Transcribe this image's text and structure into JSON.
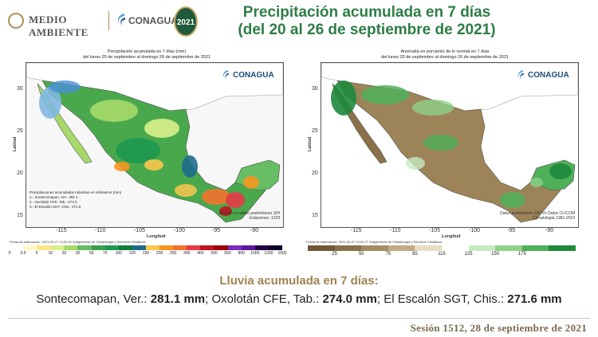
{
  "header": {
    "gov_logo_text": "MEDIO AMBIENTE",
    "agency_logo_text": "CONAGUA",
    "badge_text": "2021",
    "title_line1": "Precipitación acumulada en 7 días",
    "title_line2": "(del 20 al 26 de septiembre de 2021)"
  },
  "left_map": {
    "title_line1": "Precipitación acumulada en 7 días (mm)",
    "title_line2": "del lunes 20 de septiembre al domingo 26 de septiembre de 2021",
    "watermark": "CONAGUA",
    "y_axis_label": "Latitud",
    "x_axis_label": "Longitud",
    "y_ticks": [
      "30",
      "25",
      "20",
      "15"
    ],
    "x_ticks": [
      "-115",
      "-110",
      "-105",
      "-100",
      "-95",
      "-90"
    ],
    "legend_title": "Precipitaciones acumuladas máximas en milímetros (mm)",
    "legend_items": [
      "1.- Sontecomapan, Ver.: 281.1",
      "2.- Oxolotán CFE, Tab.: 274.0",
      "3.- El Escalón SGT, Chis.: 271.6"
    ],
    "credit_line1": "Basado en datos preliminares SIH",
    "credit_line2": "Estaciones: 1293",
    "footnote": "Fecha de elaboración: 2021-09-27 13:02:00 Subgerencia de Climatología y Servicios Climáticos",
    "colorbar_ticks": [
      "0",
      "0.5",
      "5",
      "10",
      "20",
      "30",
      "50",
      "70",
      "100",
      "120",
      "150",
      "200",
      "250",
      "300",
      "400",
      "500",
      "600",
      "800",
      "1000",
      "1200",
      "1500"
    ],
    "colorbar_colors": [
      "#ffffff",
      "#fff6c8",
      "#fde68a",
      "#d9ef8b",
      "#a6d96a",
      "#66bd63",
      "#3aa04a",
      "#1a9850",
      "#0e7d3a",
      "#1d6b8c",
      "#f9c74f",
      "#f8961e",
      "#f3722c",
      "#e63946",
      "#c1121f",
      "#9d0208",
      "#7b2cbf",
      "#5a189a",
      "#240046",
      "#10002b"
    ]
  },
  "right_map": {
    "title_line1": "Anomalía en porciento de lo normal en 7 días",
    "title_line2": "del lunes 20 de septiembre al domingo 26 de septiembre de 2021",
    "watermark": "CONAGUA",
    "y_axis_label": "Latitud",
    "x_axis_label": "Longitud",
    "y_ticks": [
      "30",
      "25",
      "20",
      "15"
    ],
    "x_ticks": [
      "-115",
      "-110",
      "-105",
      "-100",
      "-95",
      "-90"
    ],
    "credit_line1": "Datos preliminares SIH Vs Datos CLICOM",
    "credit_line2": "Climatología 1981-2010",
    "footnote": "Fecha de elaboración: 2021-09-27 13:02:27 Subgerencia de Climatología y Servicios Climáticos",
    "colorbar_ticks": [
      "25",
      "50",
      "75",
      "85",
      "115",
      "125",
      "150",
      "175"
    ],
    "colorbar_colors": [
      "#6f5a35",
      "#8a7149",
      "#a58c63",
      "#c2ab84",
      "#e8dcc2",
      "#ffffff",
      "#c7eac0",
      "#8fd18a",
      "#4fb05a",
      "#1d8a3c"
    ]
  },
  "summary": {
    "heading": "Lluvia acumulada en 7 días:",
    "station1_name": "Sontecomapan, Ver.: ",
    "station1_value": "281.1 mm",
    "sep1": "; ",
    "station2_name": "Oxolotán CFE, Tab.: ",
    "station2_value": "274.0 mm",
    "sep2": "; ",
    "station3_name": "El Escalón SGT, Chis.: ",
    "station3_value": "271.6 mm"
  },
  "footer": {
    "session": "Sesión 1512, 28 de septiembre de 2021"
  },
  "colors": {
    "title_green": "#2e7d45",
    "accent_gold": "#a08252",
    "ocean_left": "#f7f7f7",
    "land_dry": "#9c8458"
  }
}
